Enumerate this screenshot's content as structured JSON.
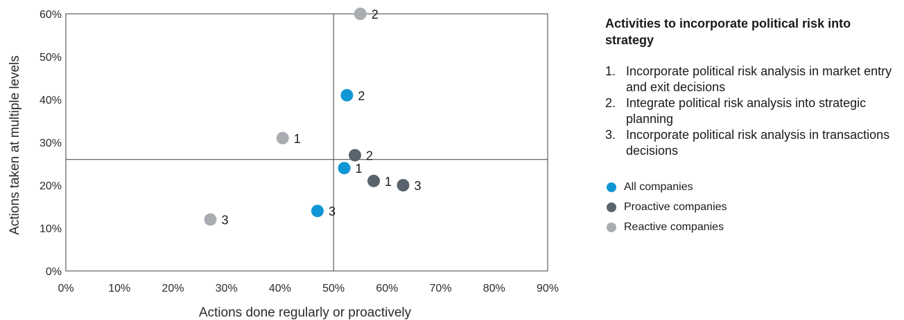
{
  "chart_data": {
    "type": "scatter",
    "title": "",
    "xlabel": "Actions done regularly or proactively",
    "ylabel": "Actions taken at multiple levels",
    "xlim": [
      0,
      90
    ],
    "ylim": [
      0,
      60
    ],
    "x_ticks": [
      "0%",
      "10%",
      "20%",
      "30%",
      "40%",
      "50%",
      "60%",
      "70%",
      "80%",
      "90%"
    ],
    "y_ticks": [
      "0%",
      "10%",
      "20%",
      "30%",
      "40%",
      "50%",
      "60%"
    ],
    "reference_lines": {
      "x": 50,
      "y": 26
    },
    "grid": false,
    "legend_position": "right",
    "series": [
      {
        "name": "All companies",
        "color": "#1196d5",
        "points": [
          {
            "label": "1",
            "x": 52,
            "y": 24
          },
          {
            "label": "2",
            "x": 52.5,
            "y": 41
          },
          {
            "label": "3",
            "x": 47,
            "y": 14
          }
        ]
      },
      {
        "name": "Proactive companies",
        "color": "#59636e",
        "points": [
          {
            "label": "1",
            "x": 57.5,
            "y": 21
          },
          {
            "label": "2",
            "x": 54,
            "y": 27
          },
          {
            "label": "3",
            "x": 63,
            "y": 20
          }
        ]
      },
      {
        "name": "Reactive companies",
        "color": "#a9adb2",
        "points": [
          {
            "label": "1",
            "x": 40.5,
            "y": 31
          },
          {
            "label": "2",
            "x": 55,
            "y": 60
          },
          {
            "label": "3",
            "x": 27,
            "y": 12
          }
        ]
      }
    ]
  },
  "sidebar": {
    "title": "Activities to incorporate political risk into strategy",
    "activities": [
      {
        "num": "1.",
        "text": "Incorporate political risk analysis in market entry and exit decisions"
      },
      {
        "num": "2.",
        "text": "Integrate political risk analysis into strategic planning"
      },
      {
        "num": "3.",
        "text": "Incorporate political risk analysis in transactions decisions"
      }
    ]
  }
}
